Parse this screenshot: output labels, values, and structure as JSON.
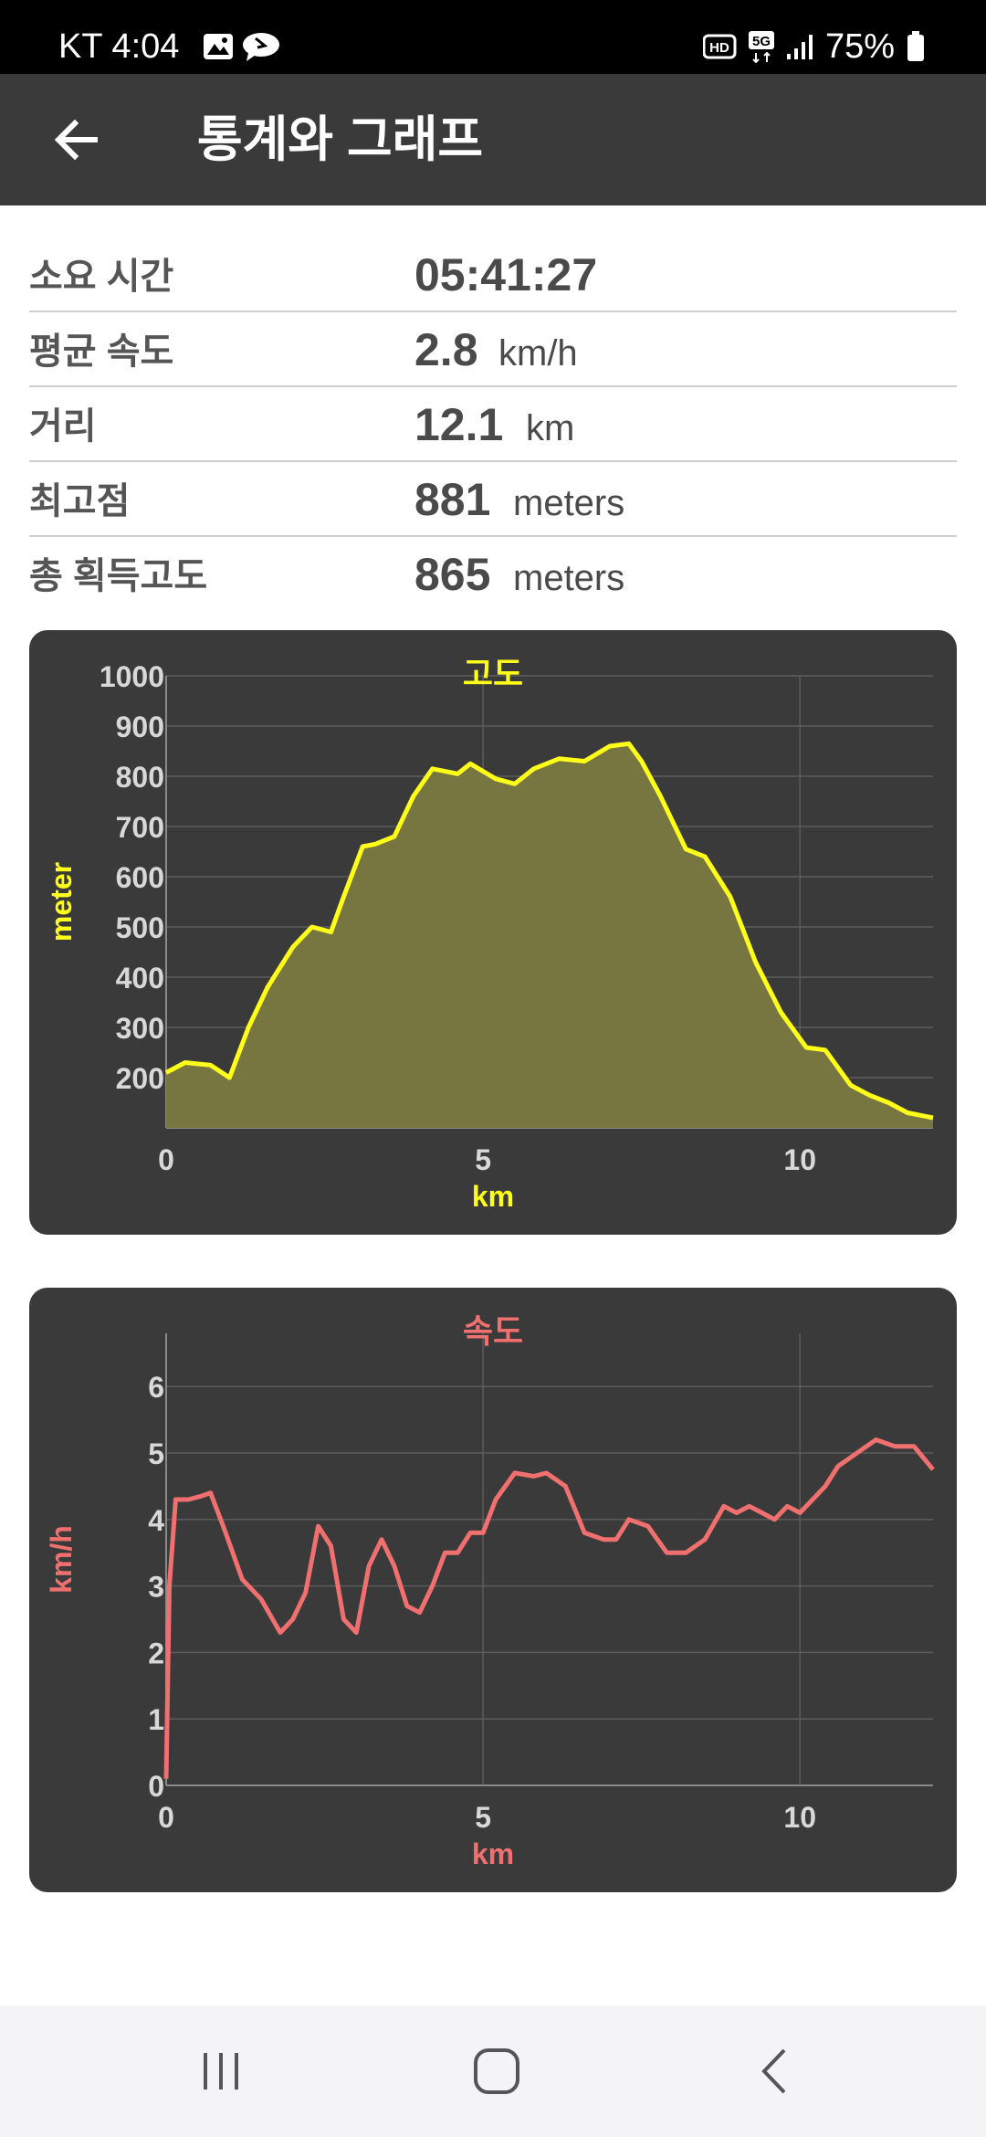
{
  "status_bar": {
    "time": "KT 4:04",
    "battery": "75%"
  },
  "app_bar": {
    "title": "통계와 그래프"
  },
  "stats": [
    {
      "label": "소요 시간",
      "value": "05:41:27",
      "unit": ""
    },
    {
      "label": "평균 속도",
      "value": "2.8",
      "unit": "km/h"
    },
    {
      "label": "거리",
      "value": "12.1",
      "unit": "km"
    },
    {
      "label": "최고점",
      "value": "881",
      "unit": "meters"
    },
    {
      "label": "총 획득고도",
      "value": "865",
      "unit": "meters"
    }
  ],
  "colors": {
    "altitude": "#ffff1a",
    "speed": "#f07070",
    "card_bg": "#3a3a3a",
    "axis_text": "#d8d8d8"
  },
  "chart_data": [
    {
      "type": "area",
      "title": "고도",
      "xlabel": "km",
      "ylabel": "meter",
      "xlim": [
        0,
        12.1
      ],
      "ylim": [
        100,
        1000
      ],
      "xticks": [
        "0",
        "5",
        "10"
      ],
      "yticks": [
        "200",
        "300",
        "400",
        "500",
        "600",
        "700",
        "800",
        "900",
        "1000"
      ],
      "grid": true,
      "x": [
        0,
        0.3,
        0.7,
        1.0,
        1.3,
        1.6,
        2.0,
        2.3,
        2.6,
        2.8,
        3.1,
        3.3,
        3.6,
        3.9,
        4.2,
        4.6,
        4.8,
        5.2,
        5.5,
        5.8,
        6.2,
        6.6,
        7.0,
        7.3,
        7.5,
        7.8,
        8.2,
        8.5,
        8.9,
        9.3,
        9.7,
        10.1,
        10.4,
        10.8,
        11.1,
        11.4,
        11.7,
        12.1
      ],
      "y": [
        210,
        230,
        225,
        200,
        300,
        380,
        460,
        500,
        490,
        560,
        660,
        665,
        680,
        760,
        815,
        805,
        825,
        795,
        785,
        815,
        835,
        830,
        860,
        865,
        830,
        760,
        655,
        640,
        560,
        430,
        330,
        260,
        255,
        185,
        165,
        150,
        130,
        120
      ]
    },
    {
      "type": "line",
      "title": "속도",
      "xlabel": "km",
      "ylabel": "km/h",
      "xlim": [
        0,
        12.1
      ],
      "ylim": [
        0,
        6.8
      ],
      "xticks": [
        "0",
        "5",
        "10"
      ],
      "yticks": [
        "0",
        "1",
        "2",
        "3",
        "4",
        "5",
        "6"
      ],
      "grid": true,
      "x": [
        0,
        0.05,
        0.15,
        0.35,
        0.55,
        0.7,
        0.9,
        1.2,
        1.5,
        1.8,
        2.0,
        2.2,
        2.4,
        2.6,
        2.8,
        3.0,
        3.2,
        3.4,
        3.6,
        3.8,
        4.0,
        4.2,
        4.4,
        4.6,
        4.8,
        5.0,
        5.2,
        5.5,
        5.8,
        6.0,
        6.3,
        6.6,
        6.9,
        7.1,
        7.3,
        7.6,
        7.9,
        8.2,
        8.5,
        8.8,
        9.0,
        9.2,
        9.4,
        9.6,
        9.8,
        10.0,
        10.2,
        10.4,
        10.6,
        10.9,
        11.2,
        11.5,
        11.8,
        12.1
      ],
      "y": [
        0.1,
        3.0,
        4.3,
        4.3,
        4.35,
        4.4,
        3.9,
        3.1,
        2.8,
        2.3,
        2.5,
        2.9,
        3.9,
        3.6,
        2.5,
        2.3,
        3.3,
        3.7,
        3.3,
        2.7,
        2.6,
        3.0,
        3.5,
        3.5,
        3.8,
        3.8,
        4.3,
        4.7,
        4.65,
        4.7,
        4.5,
        3.8,
        3.7,
        3.7,
        4.0,
        3.9,
        3.5,
        3.5,
        3.7,
        4.2,
        4.1,
        4.2,
        4.1,
        4.0,
        4.2,
        4.1,
        4.3,
        4.5,
        4.8,
        5.0,
        5.2,
        5.1,
        5.1,
        4.75
      ]
    }
  ]
}
